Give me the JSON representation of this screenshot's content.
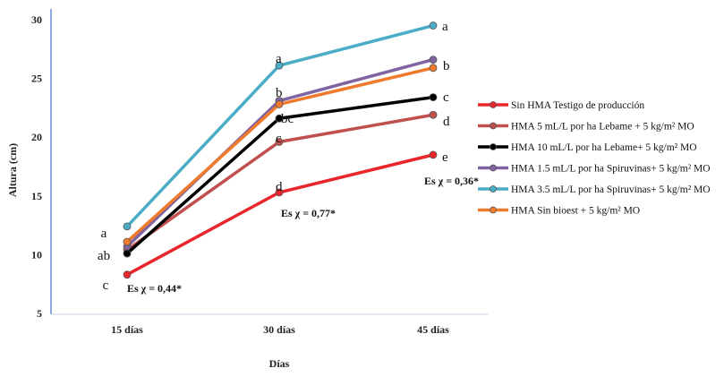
{
  "chart_data": {
    "type": "line",
    "title": "",
    "xlabel": "Días",
    "ylabel": "Altura (cm)",
    "categories": [
      "15 días",
      "30 días",
      "45 días"
    ],
    "ylim": [
      5,
      30
    ],
    "yticks": [
      5,
      10,
      15,
      20,
      25,
      30
    ],
    "grid": false,
    "legend_position": "right",
    "series": [
      {
        "name": "Sin HMA  Testigo de producción",
        "color": "#e8262b",
        "values": [
          8.3,
          15.3,
          18.5
        ]
      },
      {
        "name": "HMA 5 mL/L por ha Lebame + 5 kg/m² MO",
        "color": "#c0504d",
        "values": [
          10.4,
          19.6,
          21.9
        ]
      },
      {
        "name": "HMA 10 mL/L por ha Lebame+ 5 kg/m² MO",
        "color": "#000000",
        "values": [
          10.1,
          21.6,
          23.4
        ]
      },
      {
        "name": "HMA 1.5 mL/L por ha Spiruvinas+ 5 kg/m² MO",
        "color": "#8064a2",
        "values": [
          10.7,
          23.1,
          26.6
        ]
      },
      {
        "name": "HMA 3.5 mL/L por ha Spiruvinas+ 5 kg/m² MO",
        "color": "#4bacc6",
        "values": [
          12.4,
          26.1,
          29.5
        ]
      },
      {
        "name": "HMA Sin bioest + 5 kg/m² MO",
        "color": "#f07a2b",
        "values": [
          11.1,
          22.8,
          25.9
        ]
      }
    ],
    "annotations": [
      {
        "category": "15 días",
        "labels": [
          "a",
          "ab",
          "c"
        ]
      },
      {
        "category": "30 días",
        "labels": [
          "a",
          "b",
          "bc",
          "c",
          "d"
        ]
      },
      {
        "category": "45 días",
        "labels": [
          "a",
          "b",
          "c",
          "d",
          "e"
        ]
      }
    ],
    "stats": [
      "Es χ = 0,44*",
      "Es χ = 0,77*",
      "Es χ = 0,36*"
    ]
  }
}
